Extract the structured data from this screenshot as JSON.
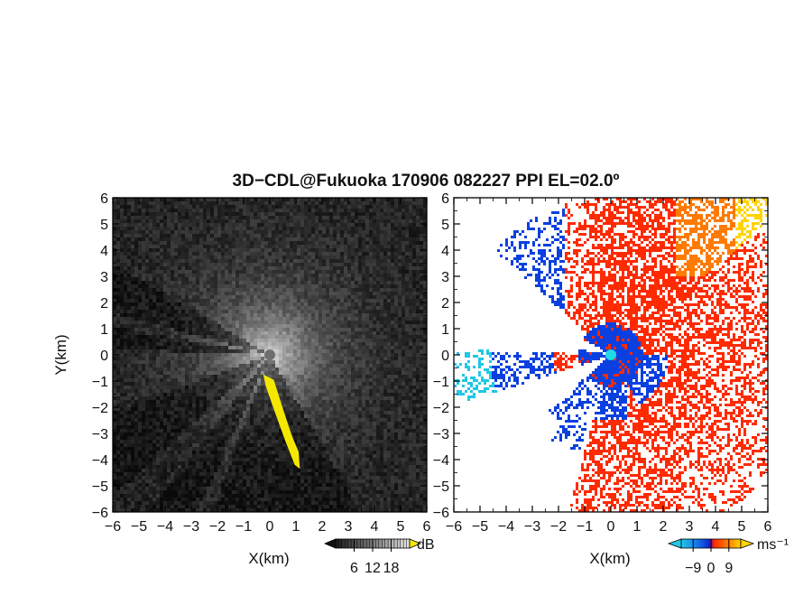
{
  "title": "3D−CDL@Fukuoka 170906 082227 PPI EL=02.0º",
  "chart_data": [
    {
      "type": "heatmap",
      "name": "",
      "xlabel": "X(km)",
      "ylabel": "Y(km)",
      "xlim": [
        -6,
        6
      ],
      "ylim": [
        -6,
        6
      ],
      "xticks": [
        "−6",
        "−5",
        "−4",
        "−3",
        "−2",
        "−1",
        "0",
        "1",
        "2",
        "3",
        "4",
        "5",
        "6"
      ],
      "yticks": [
        "−6",
        "−5",
        "−4",
        "−3",
        "−2",
        "−1",
        "0",
        "1",
        "2",
        "3",
        "4",
        "5",
        "6"
      ],
      "colorbar": {
        "unit": "dB",
        "ticks": [
          "6",
          "12",
          "18"
        ],
        "tick_values": [
          6,
          12,
          18
        ],
        "range": [
          0,
          24
        ]
      },
      "colors": {
        "low": "#1a1a1a",
        "high": "#dcdcdc",
        "highlight": "#f5e800",
        "radar": "#6e6e6e"
      },
      "radar_center": [
        0,
        0
      ],
      "highlight_region": [
        [
          -0.25,
          -0.75
        ],
        [
          0.15,
          -0.95
        ],
        [
          0.55,
          -2.2
        ],
        [
          0.85,
          -3.1
        ],
        [
          1.1,
          -3.7
        ],
        [
          1.15,
          -4.35
        ],
        [
          0.95,
          -4.2
        ],
        [
          0.6,
          -3.3
        ],
        [
          0.2,
          -2.2
        ],
        [
          -0.15,
          -1.2
        ]
      ]
    },
    {
      "type": "heatmap",
      "name": "",
      "xlabel": "X(km)",
      "ylabel": "",
      "xlim": [
        -6,
        6
      ],
      "ylim": [
        -6,
        6
      ],
      "xticks": [
        "−6",
        "−5",
        "−4",
        "−3",
        "−2",
        "−1",
        "0",
        "1",
        "2",
        "3",
        "4",
        "5",
        "6"
      ],
      "yticks": [
        "−6",
        "−5",
        "−4",
        "−3",
        "−2",
        "−1",
        "0",
        "1",
        "2",
        "3",
        "4",
        "5",
        "6"
      ],
      "colorbar": {
        "unit": "ms⁻¹",
        "ticks": [
          "−9",
          "0",
          "9"
        ],
        "tick_values": [
          -9,
          0,
          9
        ],
        "range": [
          -15,
          15
        ]
      },
      "colors": {
        "strong_neg": "#1ec8e6",
        "neg": "#0a40e0",
        "pos": "#ff2a00",
        "mid_pos": "#ff7a00",
        "strong_pos": "#ffd400",
        "radar": "#22d8e8"
      },
      "radar_center": [
        0,
        0
      ]
    }
  ]
}
